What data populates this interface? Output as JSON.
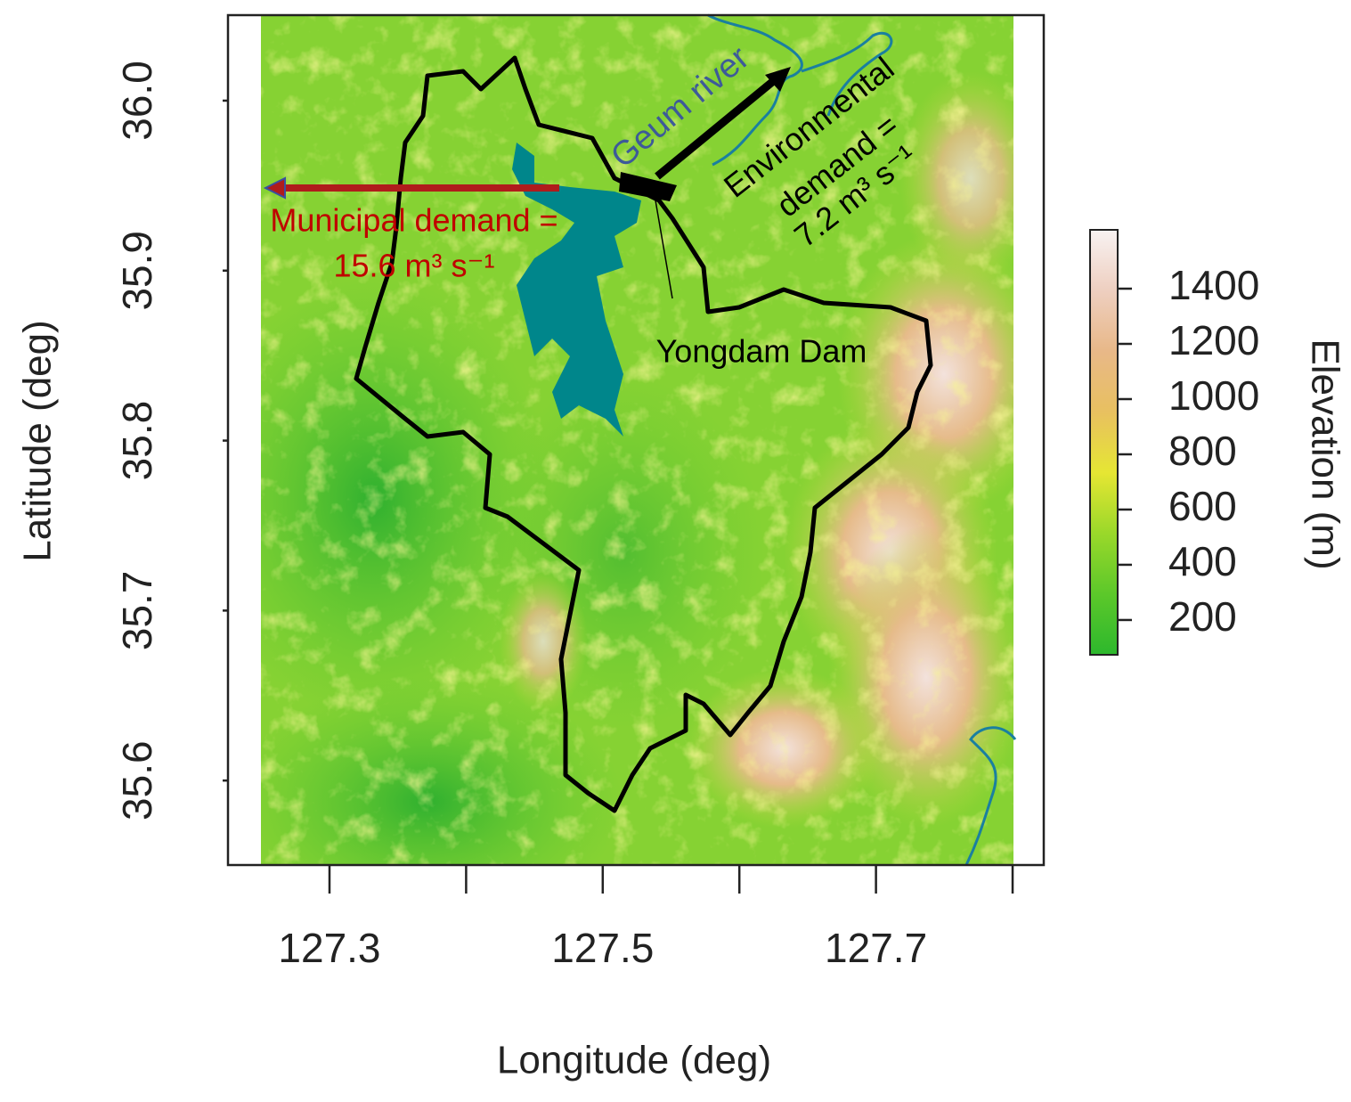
{
  "chart_data": {
    "type": "map",
    "xlabel": "Longitude (deg)",
    "ylabel": "Latitude (deg)",
    "xlim": [
      127.2257,
      127.8228
    ],
    "ylim": [
      35.5503,
      36.0503
    ],
    "xticks": [
      127.3,
      {
        "value": 127.4,
        "label": null
      },
      127.5,
      {
        "value": 127.6,
        "label": null
      },
      127.7,
      {
        "value": 127.8,
        "label": null
      }
    ],
    "yticks": [
      {
        "value": 36,
        "label": "36.0"
      },
      35.9,
      35.8,
      35.7,
      35.6
    ],
    "colorbar": {
      "label": "Elevation (m)",
      "lim": [
        74,
        1613
      ],
      "ticks": [
        200,
        400,
        600,
        800,
        1000,
        1200,
        1400
      ],
      "colors": [
        "#2db82d",
        "#5cc82a",
        "#9ad82a",
        "#e6e633",
        "#e8c060",
        "#e8b888",
        "#eecfc0",
        "#f8f2f2"
      ]
    },
    "annotations": {
      "river": "Geum river",
      "dam": "Yongdam Dam",
      "municipal": [
        "Municipal demand =",
        "15.6 m³ s⁻¹"
      ],
      "environmental": [
        "Environmental",
        "demand =",
        "7.2 m³ s⁻¹"
      ]
    }
  }
}
